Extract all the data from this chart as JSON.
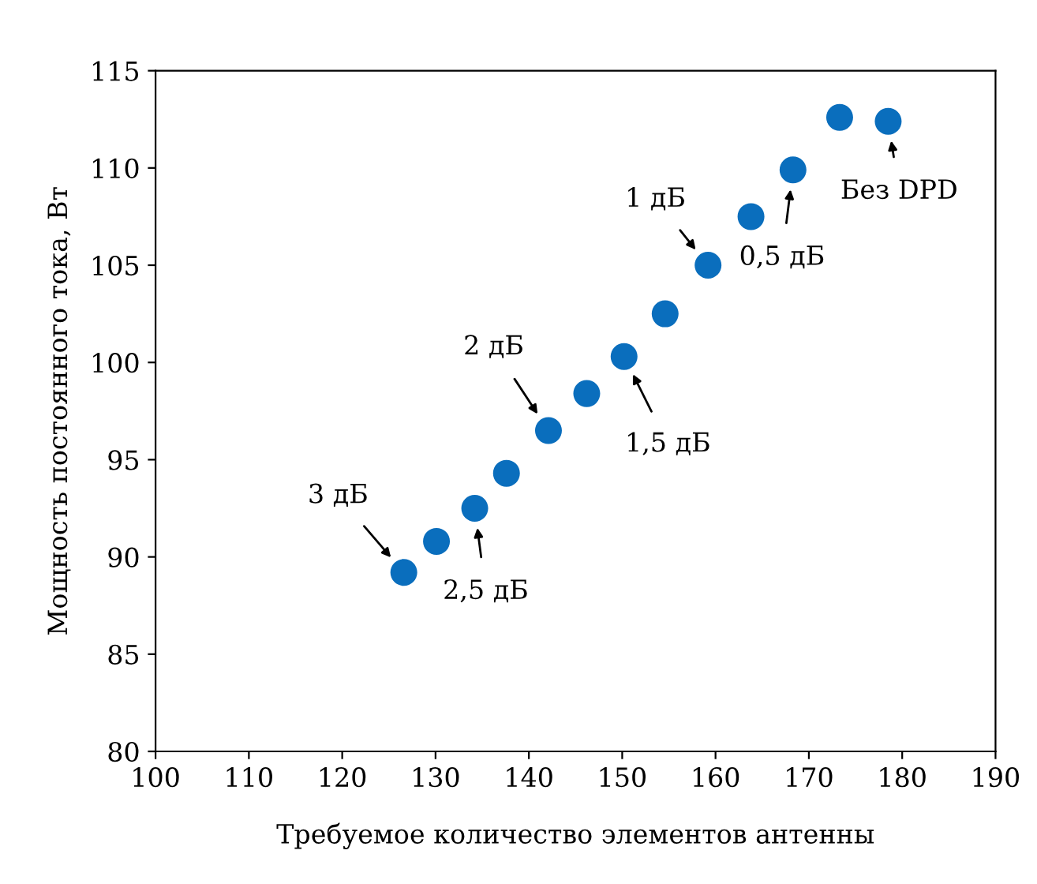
{
  "chart_data": {
    "type": "scatter",
    "xlabel": "Требуемое количество элементов антенны",
    "ylabel": "Мощность постоянного тока, Вт",
    "x": [
      126.6,
      130.1,
      134.2,
      137.6,
      142.1,
      146.2,
      150.2,
      154.6,
      159.2,
      163.8,
      168.3,
      173.3,
      178.5
    ],
    "series": [
      {
        "color": "#0a6ebd",
        "values": [
          89.2,
          90.8,
          92.5,
          94.3,
          96.5,
          98.4,
          100.3,
          102.5,
          105.0,
          107.5,
          109.9,
          112.6,
          112.4
        ]
      }
    ],
    "marker": "circle",
    "grid": false,
    "legend": false,
    "xlim": [
      100,
      190
    ],
    "xticks": [
      100,
      110,
      120,
      130,
      140,
      150,
      160,
      170,
      180,
      190
    ],
    "ylim": [
      80,
      115
    ],
    "yticks": [
      80,
      85,
      90,
      95,
      100,
      105,
      110,
      115
    ],
    "annotations": [
      {
        "text": "3 дБ",
        "x": 126.6,
        "y": 89.2
      },
      {
        "text": "2,5 дБ",
        "x": 134.2,
        "y": 92.5
      },
      {
        "text": "2 дБ",
        "x": 142.1,
        "y": 96.5
      },
      {
        "text": "1,5 дБ",
        "x": 150.2,
        "y": 100.3
      },
      {
        "text": "1 дБ",
        "x": 159.2,
        "y": 105.0
      },
      {
        "text": "0,5 дБ",
        "x": 168.3,
        "y": 109.9
      },
      {
        "text": "Без DPD",
        "x": 178.5,
        "y": 112.4
      }
    ]
  }
}
